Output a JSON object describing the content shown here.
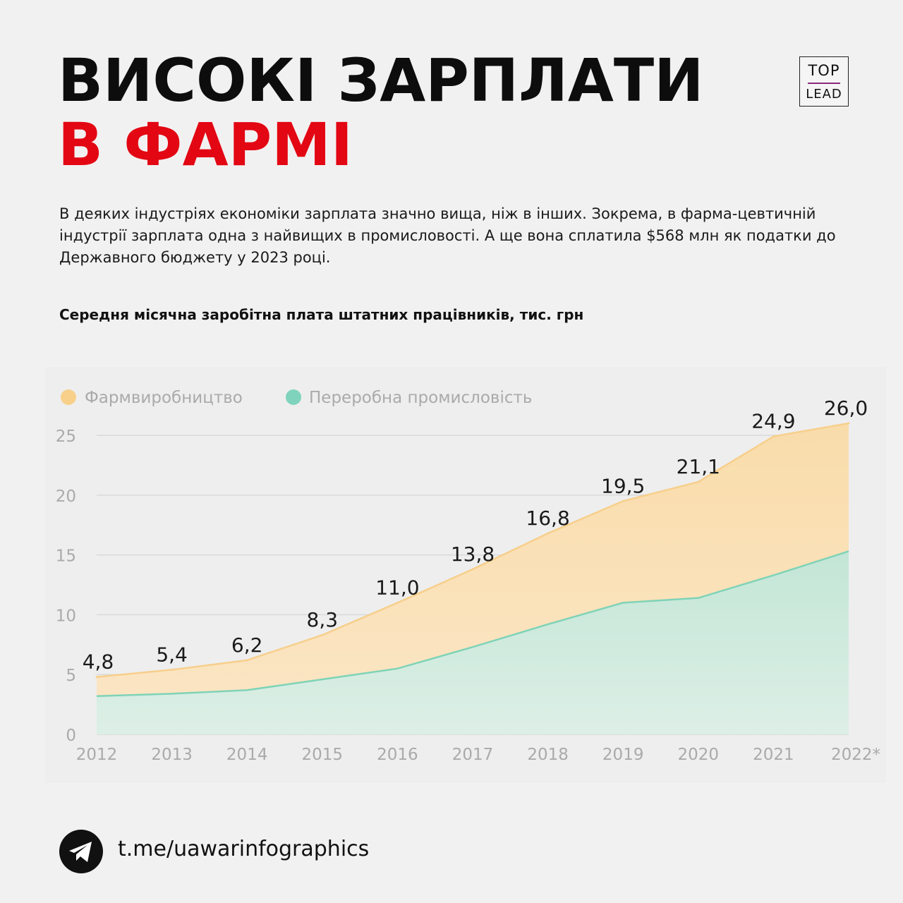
{
  "header": {
    "title_line_1": "ВИСОКІ ЗАРПЛАТИ",
    "title_line_2": "В ФАРМІ",
    "logo_top": "TOP",
    "logo_bottom": "LEAD"
  },
  "intro_text": "В деяких індустріях економіки зарплата значно вища, ніж в інших. Зокрема, в фарма-цевтичній індустрії зарплата одна з найвищих в промисловості. А ще вона сплатила $568 млн як податки  до Державного бюджету у 2023 році.",
  "chart_subtitle": "Середня місячна заробітна плата штатних працівників, тис. грн",
  "colors": {
    "pharma_fill": "#f9dcaa",
    "pharma_line": "#f7cf8c",
    "pharma_legend": "#f8d08a",
    "industry_fill": "#c3e6d6",
    "industry_line": "#7fd3b7",
    "industry_legend": "#7fd3bd",
    "title_red": "#e30613"
  },
  "chart_data": {
    "type": "area",
    "x": [
      "2012",
      "2013",
      "2014",
      "2015",
      "2016",
      "2017",
      "2018",
      "2019",
      "2020",
      "2021",
      "2022*"
    ],
    "series": [
      {
        "name": "Фармвиробництво",
        "values": [
          4.8,
          5.4,
          6.2,
          8.3,
          11.0,
          13.8,
          16.8,
          19.5,
          21.1,
          24.9,
          26.0
        ],
        "labels": [
          "4,8",
          "5,4",
          "6,2",
          "8,3",
          "11,0",
          "13,8",
          "16,8",
          "19,5",
          "21,1",
          "24,9",
          "26,0"
        ]
      },
      {
        "name": "Переробна промисловість",
        "values": [
          3.2,
          3.4,
          3.7,
          4.6,
          5.5,
          7.3,
          9.2,
          11.0,
          11.4,
          13.3,
          15.3
        ]
      }
    ],
    "yticks": [
      "0",
      "5",
      "10",
      "15",
      "20",
      "25"
    ],
    "ylim": [
      0,
      26
    ],
    "grid": true,
    "legend_position": "top-left"
  },
  "footer": {
    "link": "t.me/uawarinfographics",
    "icon": "telegram-icon"
  }
}
